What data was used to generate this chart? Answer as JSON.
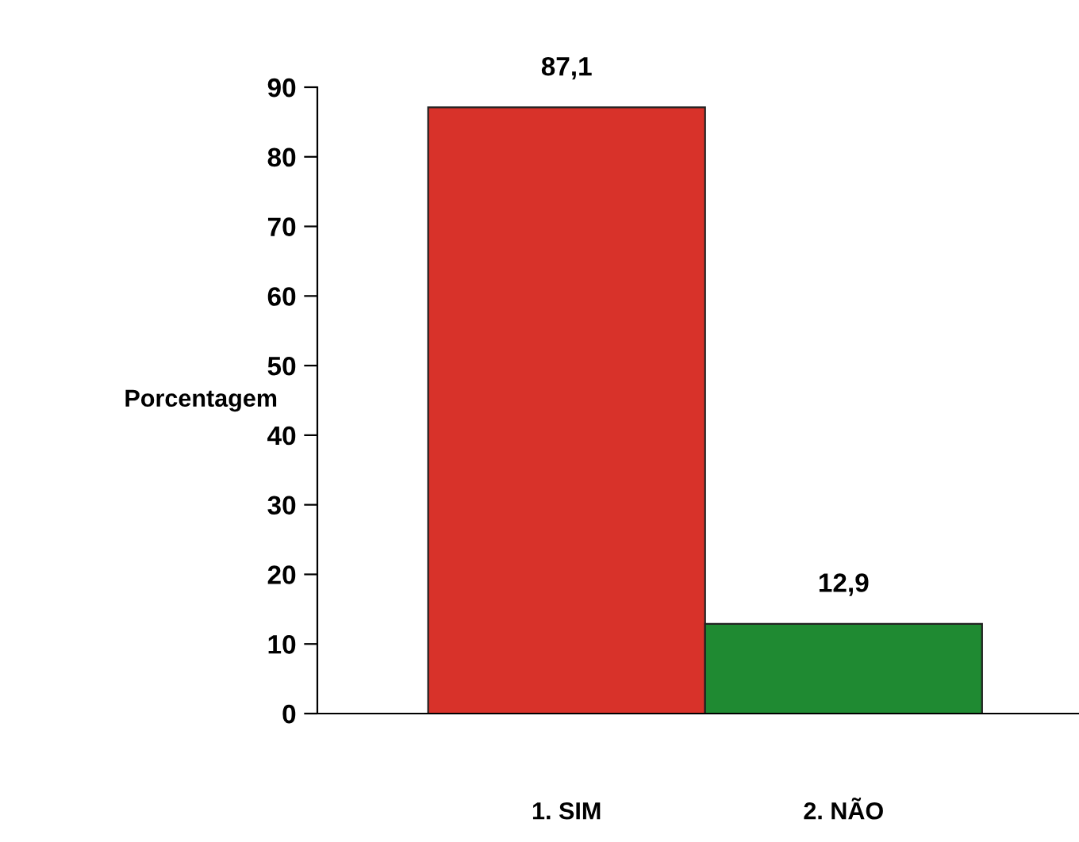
{
  "chart_data": {
    "type": "bar",
    "ylabel": "Porcentagem",
    "categories": [
      "1. SIM",
      "2. NÃO"
    ],
    "values": [
      87.1,
      12.9
    ],
    "colors": [
      "#d8322a",
      "#1f8a32"
    ],
    "value_labels": [
      "87,1",
      "12,9"
    ],
    "ylim": [
      0,
      90
    ],
    "yticks": [
      0,
      10,
      20,
      30,
      40,
      50,
      60,
      70,
      80,
      90
    ],
    "grid": false
  }
}
